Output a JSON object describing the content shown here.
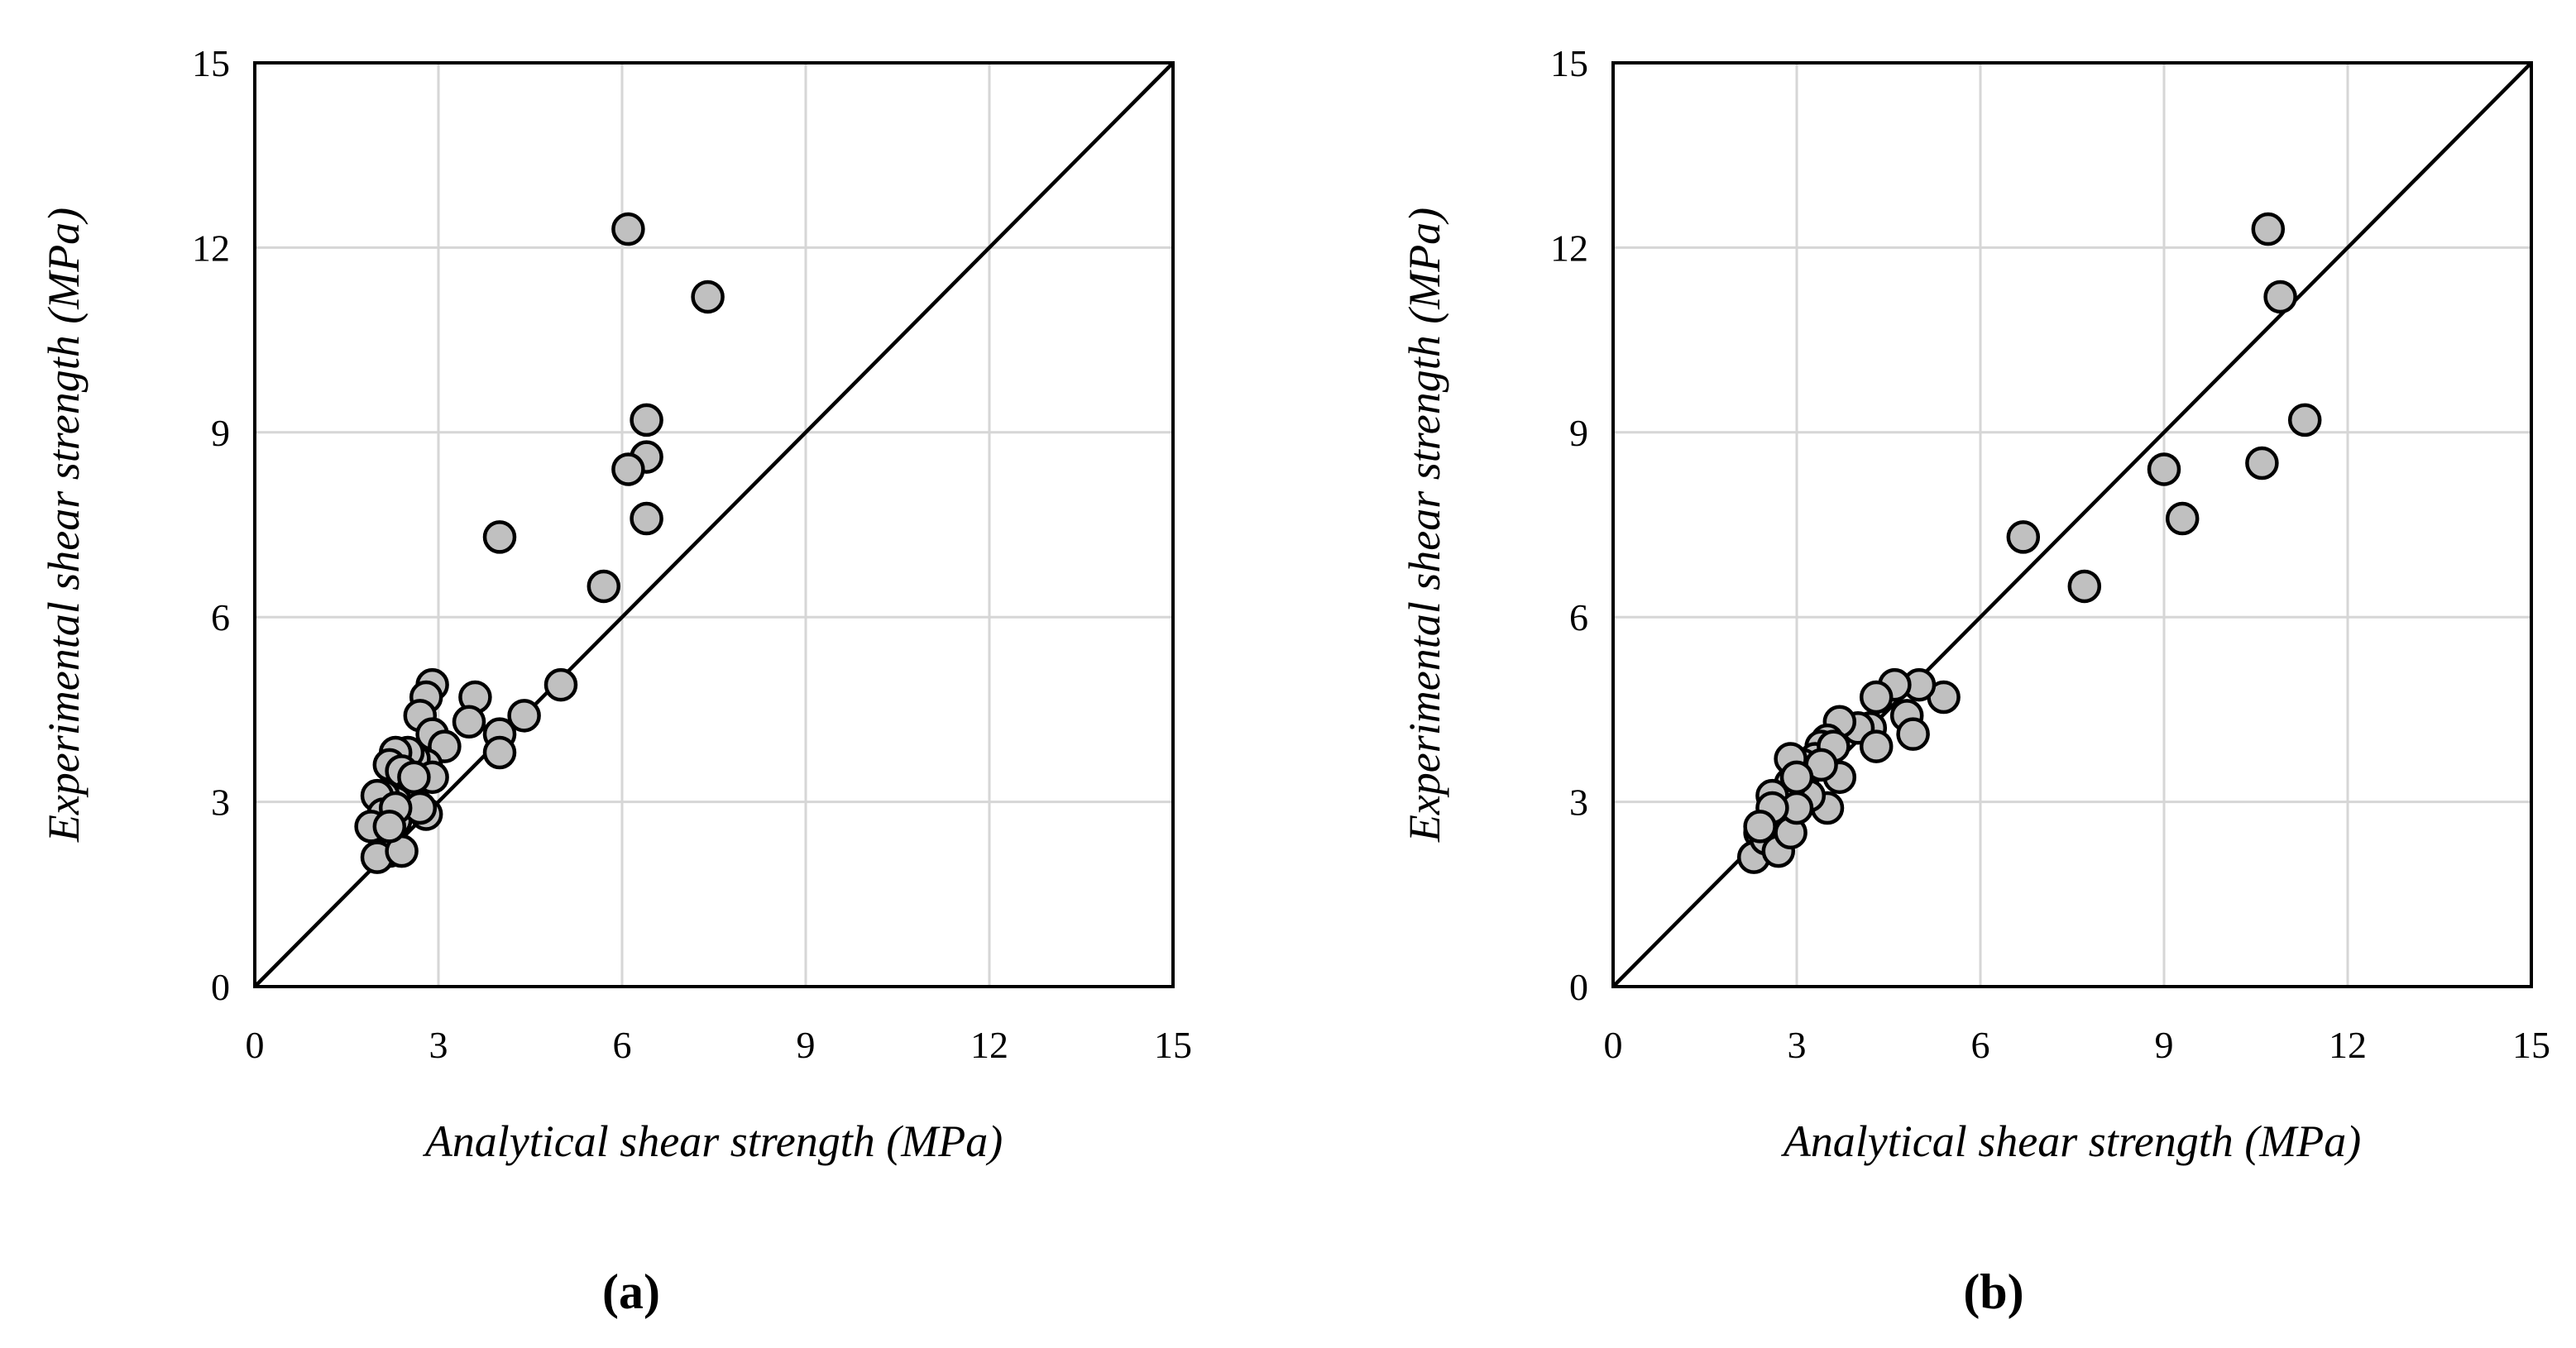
{
  "figure": {
    "colors": {
      "point_fill": "#c0c0c0",
      "point_stroke": "#000000",
      "grid": "#d6d6d6",
      "line": "#000000"
    }
  },
  "chart_data": [
    {
      "type": "scatter",
      "panel_label": "(a)",
      "title": "",
      "xlabel": "Analytical shear strength (MPa)",
      "ylabel": "Experimental shear strength (MPa)",
      "xlim": [
        0,
        15
      ],
      "ylim": [
        0,
        15
      ],
      "xticks": [
        "0",
        "3",
        "6",
        "9",
        "12",
        "15"
      ],
      "yticks": [
        "0",
        "3",
        "6",
        "9",
        "12",
        "15"
      ],
      "grid": true,
      "reference_line": "y = x",
      "series": [
        {
          "name": "data",
          "points": [
            [
              6.1,
              12.3
            ],
            [
              7.4,
              11.2
            ],
            [
              6.4,
              9.2
            ],
            [
              6.4,
              8.6
            ],
            [
              6.1,
              8.4
            ],
            [
              6.4,
              7.6
            ],
            [
              4.0,
              7.3
            ],
            [
              5.7,
              6.5
            ],
            [
              5.0,
              4.9
            ],
            [
              4.4,
              4.4
            ],
            [
              4.0,
              4.1
            ],
            [
              4.0,
              3.8
            ],
            [
              3.6,
              4.7
            ],
            [
              3.5,
              4.3
            ],
            [
              2.9,
              4.9
            ],
            [
              2.8,
              4.7
            ],
            [
              2.7,
              4.4
            ],
            [
              2.9,
              4.1
            ],
            [
              3.1,
              3.9
            ],
            [
              2.8,
              3.6
            ],
            [
              2.6,
              3.7
            ],
            [
              2.5,
              3.8
            ],
            [
              2.3,
              3.8
            ],
            [
              2.2,
              3.6
            ],
            [
              2.4,
              3.5
            ],
            [
              2.9,
              3.4
            ],
            [
              2.5,
              3.1
            ],
            [
              2.3,
              3.0
            ],
            [
              2.1,
              3.1
            ],
            [
              2.0,
              3.1
            ],
            [
              2.1,
              2.8
            ],
            [
              2.3,
              2.7
            ],
            [
              2.2,
              2.5
            ],
            [
              2.2,
              2.2
            ],
            [
              2.0,
              2.1
            ],
            [
              2.4,
              2.2
            ],
            [
              2.8,
              2.8
            ],
            [
              2.7,
              2.9
            ],
            [
              1.9,
              2.6
            ],
            [
              2.3,
              2.9
            ],
            [
              2.6,
              3.4
            ],
            [
              2.2,
              2.6
            ]
          ]
        }
      ]
    },
    {
      "type": "scatter",
      "panel_label": "(b)",
      "title": "",
      "xlabel": "Analytical shear strength (MPa)",
      "ylabel": "Experimental shear strength (MPa)",
      "xlim": [
        0,
        15
      ],
      "ylim": [
        0,
        15
      ],
      "xticks": [
        "0",
        "3",
        "6",
        "9",
        "12",
        "15"
      ],
      "yticks": [
        "0",
        "3",
        "6",
        "9",
        "12",
        "15"
      ],
      "grid": true,
      "reference_line": "y = x",
      "series": [
        {
          "name": "data",
          "points": [
            [
              10.7,
              12.3
            ],
            [
              10.9,
              11.2
            ],
            [
              11.3,
              9.2
            ],
            [
              10.6,
              8.5
            ],
            [
              9.0,
              8.4
            ],
            [
              9.3,
              7.6
            ],
            [
              6.7,
              7.3
            ],
            [
              7.7,
              6.5
            ],
            [
              5.4,
              4.7
            ],
            [
              5.0,
              4.9
            ],
            [
              4.6,
              4.9
            ],
            [
              4.3,
              4.7
            ],
            [
              4.8,
              4.4
            ],
            [
              4.9,
              4.1
            ],
            [
              4.2,
              4.2
            ],
            [
              4.0,
              4.2
            ],
            [
              4.3,
              3.9
            ],
            [
              3.7,
              4.3
            ],
            [
              3.5,
              4.0
            ],
            [
              3.4,
              3.9
            ],
            [
              3.3,
              3.7
            ],
            [
              3.1,
              3.6
            ],
            [
              2.9,
              3.7
            ],
            [
              3.6,
              3.9
            ],
            [
              3.7,
              3.4
            ],
            [
              3.5,
              2.9
            ],
            [
              3.2,
              3.1
            ],
            [
              2.9,
              3.3
            ],
            [
              2.8,
              3.0
            ],
            [
              2.6,
              3.1
            ],
            [
              2.6,
              2.8
            ],
            [
              2.5,
              2.6
            ],
            [
              2.4,
              2.5
            ],
            [
              2.3,
              2.1
            ],
            [
              2.5,
              2.4
            ],
            [
              2.7,
              2.2
            ],
            [
              2.9,
              2.5
            ],
            [
              3.0,
              2.9
            ],
            [
              2.6,
              2.9
            ],
            [
              3.4,
              3.6
            ],
            [
              3.0,
              3.4
            ],
            [
              2.4,
              2.6
            ]
          ]
        }
      ]
    }
  ]
}
